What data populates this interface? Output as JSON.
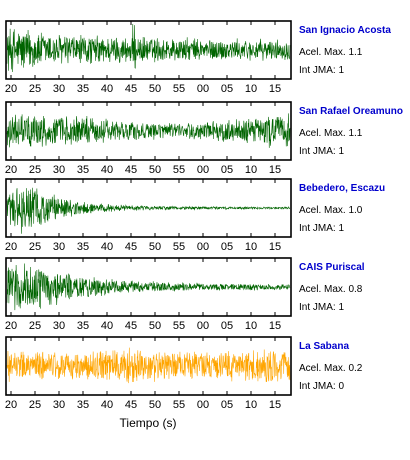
{
  "chart_data": {
    "type": "line",
    "xlabel": "Tiempo (s)",
    "x_tick_labels": [
      "20",
      "25",
      "30",
      "35",
      "40",
      "45",
      "50",
      "55",
      "00",
      "05",
      "10",
      "15"
    ],
    "panels": [
      {
        "name": "San Ignacio Acosta",
        "color": "#006400",
        "accel_text": "Acel. Max. 1.1",
        "jma_text": "Int JMA: 1",
        "accel_max": 1.1,
        "jma": 1,
        "envelope": [
          [
            0,
            0.95
          ],
          [
            0.06,
            0.9
          ],
          [
            0.12,
            0.75
          ],
          [
            0.2,
            0.65
          ],
          [
            0.3,
            0.6
          ],
          [
            0.45,
            0.55
          ],
          [
            0.6,
            0.5
          ],
          [
            0.75,
            0.45
          ],
          [
            0.9,
            0.42
          ],
          [
            1.0,
            0.4
          ]
        ],
        "spikes": [
          [
            0.45,
            1.0
          ],
          [
            0.03,
            1.0
          ]
        ]
      },
      {
        "name": "San Rafael Oreamuno",
        "color": "#006400",
        "accel_text": "Acel. Max. 1.1",
        "jma_text": "Int JMA: 1",
        "accel_max": 1.1,
        "jma": 1,
        "envelope": [
          [
            0,
            0.7
          ],
          [
            0.1,
            0.7
          ],
          [
            0.2,
            0.65
          ],
          [
            0.3,
            0.55
          ],
          [
            0.45,
            0.38
          ],
          [
            0.6,
            0.3
          ],
          [
            0.75,
            0.4
          ],
          [
            0.88,
            0.55
          ],
          [
            1.0,
            0.7
          ]
        ],
        "spikes": [
          [
            0.13,
            0.9
          ],
          [
            0.93,
            0.85
          ]
        ]
      },
      {
        "name": "Bebedero, Escazu",
        "color": "#006400",
        "accel_text": "Acel. Max. 1.0",
        "jma_text": "Int JMA: 1",
        "accel_max": 1.0,
        "jma": 1,
        "envelope": [
          [
            0,
            0.75
          ],
          [
            0.03,
            1.0
          ],
          [
            0.08,
            0.95
          ],
          [
            0.15,
            0.6
          ],
          [
            0.22,
            0.35
          ],
          [
            0.3,
            0.2
          ],
          [
            0.45,
            0.1
          ],
          [
            0.6,
            0.07
          ],
          [
            0.8,
            0.05
          ],
          [
            1.0,
            0.04
          ]
        ],
        "spikes": [
          [
            0.05,
            1.0
          ]
        ]
      },
      {
        "name": "CAIS Puriscal",
        "color": "#006400",
        "accel_text": "Acel. Max. 0.8",
        "jma_text": "Int JMA: 1",
        "accel_max": 0.8,
        "jma": 1,
        "envelope": [
          [
            0,
            0.9
          ],
          [
            0.05,
            1.0
          ],
          [
            0.1,
            0.95
          ],
          [
            0.18,
            0.7
          ],
          [
            0.28,
            0.45
          ],
          [
            0.4,
            0.28
          ],
          [
            0.55,
            0.2
          ],
          [
            0.7,
            0.15
          ],
          [
            0.85,
            0.13
          ],
          [
            1.0,
            0.12
          ]
        ],
        "spikes": [
          [
            0.06,
            1.0
          ]
        ]
      },
      {
        "name": "La Sabana",
        "color": "#ffa500",
        "accel_text": "Acel. Max. 0.2",
        "jma_text": "Int JMA: 0",
        "accel_max": 0.2,
        "jma": 0,
        "envelope": [
          [
            0,
            0.6
          ],
          [
            0.15,
            0.62
          ],
          [
            0.3,
            0.6
          ],
          [
            0.45,
            0.65
          ],
          [
            0.6,
            0.6
          ],
          [
            0.8,
            0.62
          ],
          [
            0.92,
            0.75
          ],
          [
            1.0,
            0.6
          ]
        ],
        "spikes": [
          [
            0.43,
            0.9
          ],
          [
            0.92,
            1.0
          ]
        ]
      }
    ]
  }
}
